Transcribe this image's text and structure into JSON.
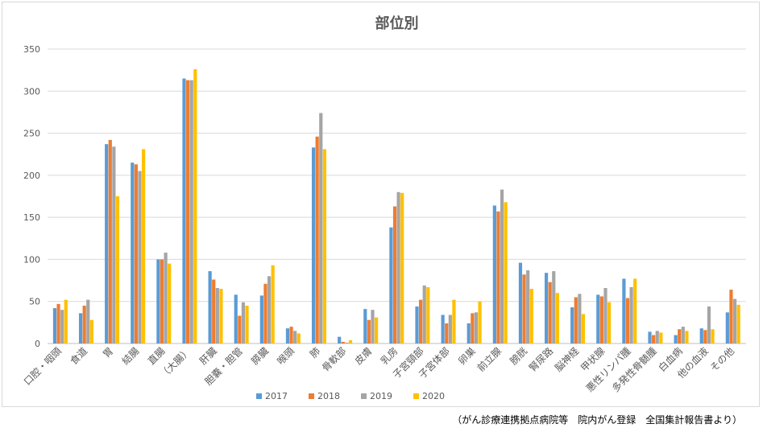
{
  "chart_data": {
    "type": "bar",
    "title": "部位別",
    "xlabel": "",
    "ylabel": "",
    "ylim": [
      0,
      350
    ],
    "yticks": [
      0,
      50,
      100,
      150,
      200,
      250,
      300,
      350
    ],
    "grid": true,
    "legend_position": "bottom",
    "categories": [
      "口腔・咽頭",
      "食道",
      "胃",
      "結腸",
      "直腸",
      "（大腸）",
      "肝臓",
      "胆嚢・胆管",
      "膵臓",
      "喉頭",
      "肺",
      "骨軟部",
      "皮膚",
      "乳房",
      "子宮頸部",
      "子宮体部",
      "卵巣",
      "前立腺",
      "膀胱",
      "腎尿路",
      "脳神経",
      "甲状腺",
      "悪性リンパ腫",
      "多発性骨髄腫",
      "白血病",
      "他の血液",
      "その他"
    ],
    "series": [
      {
        "name": "2017",
        "color": "#5b9bd5",
        "values": [
          42,
          36,
          237,
          215,
          100,
          315,
          86,
          58,
          57,
          18,
          233,
          8,
          41,
          138,
          44,
          34,
          24,
          164,
          96,
          84,
          43,
          58,
          77,
          14,
          10,
          18,
          37
        ]
      },
      {
        "name": "2018",
        "color": "#ed7d31",
        "values": [
          47,
          45,
          242,
          213,
          100,
          313,
          76,
          33,
          71,
          20,
          246,
          2,
          28,
          163,
          52,
          24,
          36,
          157,
          82,
          73,
          55,
          56,
          54,
          10,
          17,
          16,
          64
        ]
      },
      {
        "name": "2019",
        "color": "#a5a5a5",
        "values": [
          40,
          52,
          234,
          205,
          108,
          313,
          66,
          49,
          80,
          15,
          274,
          1,
          40,
          180,
          69,
          34,
          37,
          183,
          87,
          86,
          59,
          66,
          67,
          15,
          20,
          44,
          53
        ]
      },
      {
        "name": "2020",
        "color": "#ffc000",
        "values": [
          52,
          28,
          175,
          231,
          95,
          326,
          65,
          45,
          93,
          12,
          231,
          4,
          31,
          179,
          67,
          52,
          50,
          168,
          65,
          60,
          35,
          49,
          77,
          13,
          15,
          17,
          46
        ]
      }
    ]
  },
  "source_note": "（がん診療連携拠点病院等　院内がん登録　全国集計報告書より）"
}
